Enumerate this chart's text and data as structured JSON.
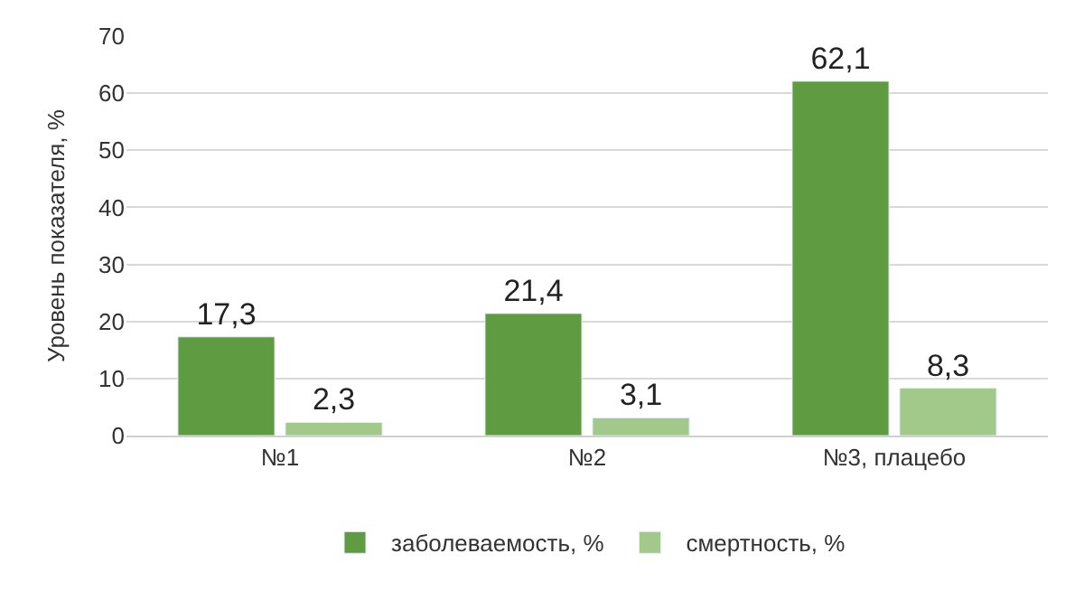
{
  "chart_data": {
    "type": "bar",
    "ylabel": "Уровень показателя, %",
    "categories": [
      "№1",
      "№2",
      "№3, плацебо"
    ],
    "series": [
      {
        "name": "заболеваемость, %",
        "color": "#5f9b40",
        "values": [
          17.3,
          21.4,
          62.1
        ],
        "value_labels": [
          "17,3",
          "21,4",
          "62,1"
        ]
      },
      {
        "name": "смертность, %",
        "color": "#a2c88a",
        "values": [
          2.3,
          3.1,
          8.3
        ],
        "value_labels": [
          "2,3",
          "3,1",
          "8,3"
        ]
      }
    ],
    "ylim": [
      0,
      70
    ],
    "yticks": [
      0,
      10,
      20,
      30,
      40,
      50,
      60,
      70
    ],
    "grid": "y",
    "legend": "bottom"
  }
}
